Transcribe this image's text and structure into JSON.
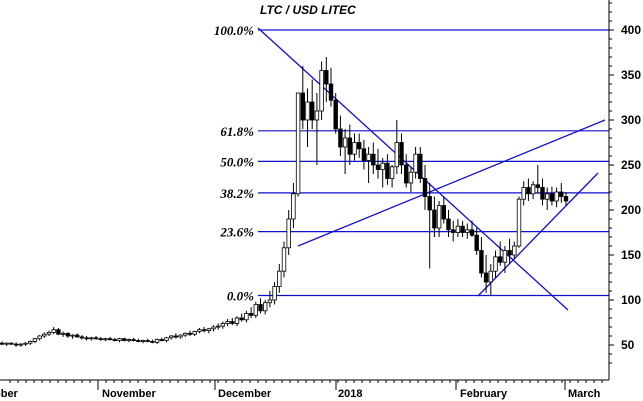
{
  "chart_data": {
    "type": "candlestick",
    "title": "LTC / USD LITEC",
    "y_axis": {
      "position": "right",
      "ylim": [
        20,
        445
      ],
      "ticks": [
        50,
        100,
        150,
        200,
        250,
        300,
        350,
        400
      ],
      "tick_labels": [
        "50",
        "100",
        "150",
        "200",
        "250",
        "300",
        "350",
        "400"
      ]
    },
    "x_axis": {
      "labels": [
        "ober",
        "November",
        "December",
        "2018",
        "February",
        "March"
      ]
    },
    "fibonacci_levels": [
      {
        "label": "100.0%",
        "value": 400
      },
      {
        "label": "61.8%",
        "value": 288
      },
      {
        "label": "50.0%",
        "value": 254
      },
      {
        "label": "38.2%",
        "value": 219
      },
      {
        "label": "23.6%",
        "value": 176
      },
      {
        "label": "0.0%",
        "value": 105
      }
    ],
    "candles_ohlc": [
      [
        52,
        54,
        50,
        51
      ],
      [
        51,
        53,
        49,
        52
      ],
      [
        52,
        53,
        50,
        51
      ],
      [
        51,
        53,
        48,
        50
      ],
      [
        50,
        52,
        48,
        51
      ],
      [
        51,
        53,
        49,
        52
      ],
      [
        52,
        55,
        50,
        54
      ],
      [
        54,
        58,
        52,
        57
      ],
      [
        57,
        61,
        55,
        60
      ],
      [
        60,
        64,
        58,
        62
      ],
      [
        62,
        66,
        60,
        64
      ],
      [
        64,
        70,
        62,
        67
      ],
      [
        67,
        69,
        61,
        62
      ],
      [
        62,
        65,
        59,
        63
      ],
      [
        63,
        64,
        58,
        60
      ],
      [
        60,
        62,
        57,
        61
      ],
      [
        61,
        63,
        58,
        59
      ],
      [
        59,
        61,
        56,
        58
      ],
      [
        58,
        60,
        55,
        57
      ],
      [
        57,
        59,
        55,
        58
      ],
      [
        58,
        60,
        56,
        57
      ],
      [
        57,
        59,
        55,
        56
      ],
      [
        56,
        58,
        54,
        57
      ],
      [
        57,
        59,
        55,
        56
      ],
      [
        56,
        58,
        54,
        55
      ],
      [
        55,
        58,
        53,
        57
      ],
      [
        57,
        58,
        54,
        55
      ],
      [
        55,
        57,
        53,
        56
      ],
      [
        56,
        58,
        54,
        55
      ],
      [
        55,
        57,
        53,
        54
      ],
      [
        54,
        56,
        52,
        55
      ],
      [
        55,
        57,
        53,
        54
      ],
      [
        54,
        56,
        52,
        53
      ],
      [
        53,
        57,
        51,
        56
      ],
      [
        56,
        58,
        54,
        55
      ],
      [
        55,
        59,
        53,
        58
      ],
      [
        58,
        61,
        56,
        60
      ],
      [
        60,
        63,
        57,
        59
      ],
      [
        59,
        62,
        57,
        61
      ],
      [
        61,
        64,
        59,
        63
      ],
      [
        63,
        66,
        60,
        62
      ],
      [
        62,
        66,
        60,
        65
      ],
      [
        65,
        69,
        63,
        67
      ],
      [
        67,
        70,
        64,
        66
      ],
      [
        66,
        69,
        63,
        68
      ],
      [
        68,
        72,
        65,
        70
      ],
      [
        70,
        74,
        67,
        71
      ],
      [
        71,
        76,
        68,
        74
      ],
      [
        74,
        79,
        71,
        76
      ],
      [
        76,
        80,
        72,
        74
      ],
      [
        74,
        82,
        71,
        80
      ],
      [
        80,
        85,
        76,
        78
      ],
      [
        78,
        88,
        75,
        85
      ],
      [
        85,
        92,
        80,
        83
      ],
      [
        83,
        98,
        80,
        95
      ],
      [
        95,
        102,
        85,
        88
      ],
      [
        88,
        100,
        84,
        97
      ],
      [
        97,
        110,
        92,
        100
      ],
      [
        100,
        120,
        95,
        115
      ],
      [
        115,
        140,
        108,
        132
      ],
      [
        132,
        165,
        125,
        158
      ],
      [
        158,
        200,
        150,
        190
      ],
      [
        190,
        230,
        180,
        218
      ],
      [
        218,
        330,
        215,
        330
      ],
      [
        330,
        360,
        290,
        300
      ],
      [
        300,
        335,
        270,
        320
      ],
      [
        320,
        345,
        290,
        300
      ],
      [
        300,
        330,
        250,
        310
      ],
      [
        310,
        365,
        300,
        355
      ],
      [
        355,
        370,
        320,
        340
      ],
      [
        340,
        358,
        315,
        322
      ],
      [
        322,
        330,
        285,
        290
      ],
      [
        290,
        305,
        260,
        270
      ],
      [
        270,
        290,
        240,
        280
      ],
      [
        280,
        295,
        250,
        262
      ],
      [
        262,
        285,
        255,
        275
      ],
      [
        275,
        285,
        258,
        268
      ],
      [
        268,
        278,
        245,
        255
      ],
      [
        255,
        270,
        230,
        262
      ],
      [
        262,
        275,
        240,
        250
      ],
      [
        250,
        268,
        235,
        245
      ],
      [
        245,
        258,
        225,
        252
      ],
      [
        252,
        262,
        228,
        235
      ],
      [
        235,
        250,
        225,
        248
      ],
      [
        248,
        300,
        240,
        275
      ],
      [
        275,
        285,
        240,
        250
      ],
      [
        250,
        262,
        225,
        230
      ],
      [
        230,
        248,
        220,
        242
      ],
      [
        242,
        270,
        235,
        262
      ],
      [
        262,
        270,
        230,
        235
      ],
      [
        235,
        250,
        200,
        215
      ],
      [
        215,
        230,
        135,
        200
      ],
      [
        200,
        215,
        170,
        180
      ],
      [
        180,
        210,
        170,
        205
      ],
      [
        205,
        215,
        185,
        190
      ],
      [
        190,
        200,
        170,
        178
      ],
      [
        178,
        188,
        165,
        175
      ],
      [
        175,
        190,
        170,
        182
      ],
      [
        182,
        188,
        170,
        175
      ],
      [
        175,
        185,
        168,
        178
      ],
      [
        178,
        188,
        170,
        172
      ],
      [
        172,
        180,
        150,
        155
      ],
      [
        155,
        170,
        125,
        130
      ],
      [
        130,
        150,
        108,
        120
      ],
      [
        120,
        140,
        105,
        132
      ],
      [
        132,
        155,
        125,
        148
      ],
      [
        148,
        165,
        138,
        142
      ],
      [
        142,
        160,
        130,
        155
      ],
      [
        155,
        168,
        140,
        150
      ],
      [
        150,
        165,
        145,
        160
      ],
      [
        160,
        215,
        158,
        212
      ],
      [
        212,
        232,
        205,
        225
      ],
      [
        225,
        235,
        210,
        218
      ],
      [
        218,
        232,
        212,
        228
      ],
      [
        228,
        250,
        218,
        225
      ],
      [
        225,
        235,
        205,
        212
      ],
      [
        212,
        225,
        200,
        218
      ],
      [
        218,
        226,
        205,
        210
      ],
      [
        210,
        225,
        203,
        220
      ],
      [
        220,
        230,
        208,
        215
      ],
      [
        215,
        220,
        205,
        210
      ]
    ]
  }
}
